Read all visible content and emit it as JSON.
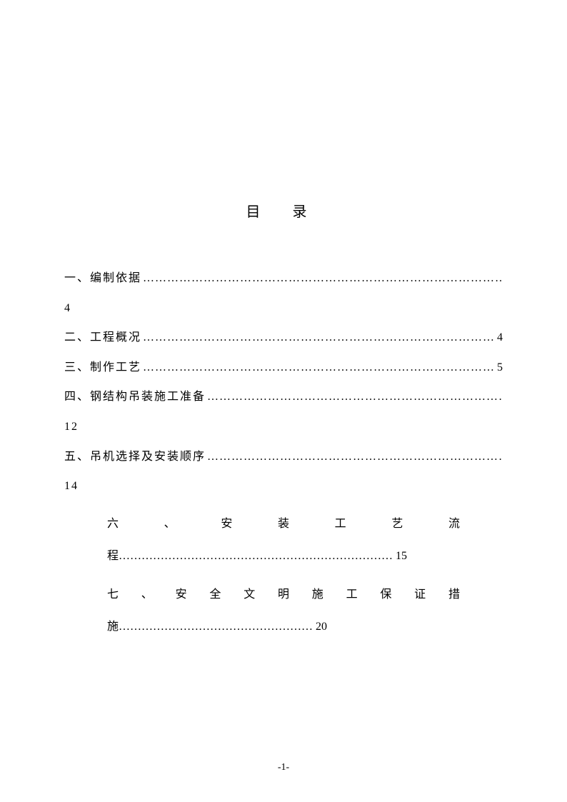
{
  "title": "目 录",
  "toc": {
    "item1": {
      "label": "一、编制依据",
      "page": "4"
    },
    "item2": {
      "label": "二、工程概况",
      "page": "4"
    },
    "item3": {
      "label": "三、制作工艺",
      "page": "5"
    },
    "item4": {
      "label": "四、钢结构吊装施工准备",
      "page": "12"
    },
    "item5": {
      "label": "五、吊机选择及安装顺序",
      "page": "14"
    },
    "item6": {
      "row1": "六 、 安 装 工 艺 流",
      "row2_prefix": "程",
      "page": "15"
    },
    "item7": {
      "row1": "七 、 安 全 文 明 施 工 保 证 措",
      "row2_prefix": "施",
      "page": "20"
    }
  },
  "dots_long": "……………………………………………………………………………………",
  "dots_med": "………………………………………………………………",
  "dots_short": "……………………………………………",
  "pageNumber": "-1-"
}
